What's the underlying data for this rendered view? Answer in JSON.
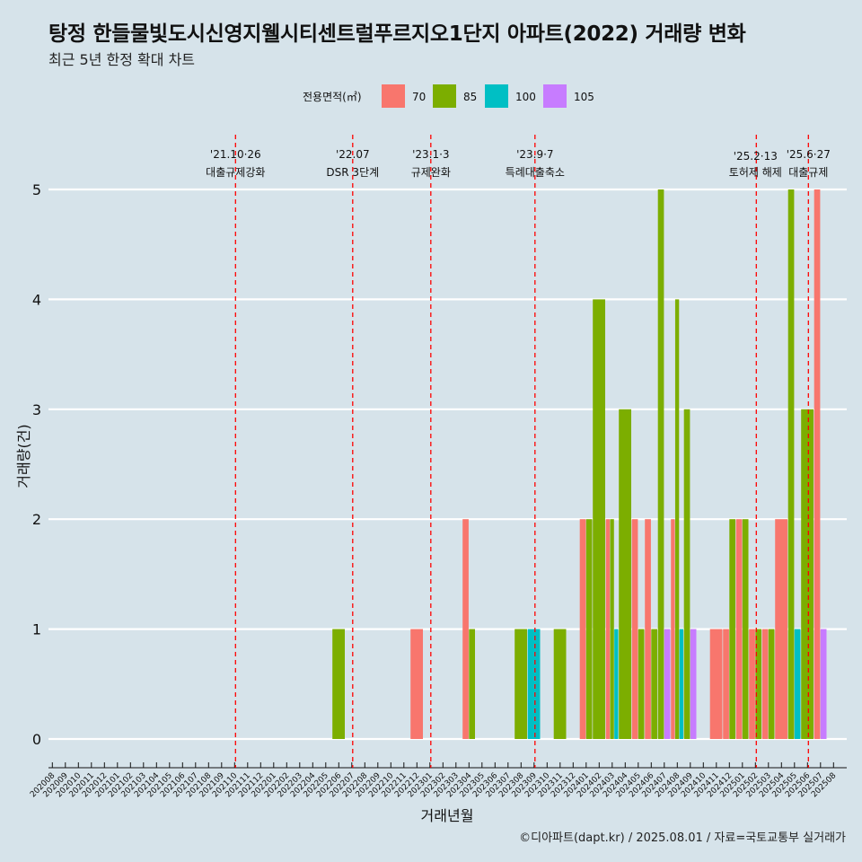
{
  "title": "탕정 한들물빛도시신영지웰시티센트럴푸르지오1단지 아파트(2022) 거래량 변화",
  "subtitle": "최근 5년 한정 확대 차트",
  "caption": "©디아파트(dapt.kr) / 2025.08.01 / 자료=국토교통부 실거래가",
  "chart_data": {
    "type": "bar",
    "xlabel": "거래년월",
    "ylabel": "거래량(건)",
    "ylim": [
      0,
      5
    ],
    "y_ticks": [
      0,
      1,
      2,
      3,
      4,
      5
    ],
    "grid": true,
    "legend_position": "top",
    "legend_title": "전용면적(㎡)",
    "categories": [
      "202008",
      "202009",
      "202010",
      "202011",
      "202012",
      "202101",
      "202102",
      "202103",
      "202104",
      "202105",
      "202106",
      "202107",
      "202108",
      "202109",
      "202110",
      "202111",
      "202112",
      "202201",
      "202202",
      "202203",
      "202204",
      "202205",
      "202206",
      "202207",
      "202208",
      "202209",
      "202210",
      "202211",
      "202212",
      "202301",
      "202302",
      "202303",
      "202304",
      "202305",
      "202306",
      "202307",
      "202308",
      "202309",
      "202310",
      "202311",
      "202312",
      "202401",
      "202402",
      "202403",
      "202404",
      "202405",
      "202406",
      "202407",
      "202408",
      "202409",
      "202410",
      "202411",
      "202412",
      "202501",
      "202502",
      "202503",
      "202504",
      "202505",
      "202506",
      "202507",
      "202508"
    ],
    "series": [
      {
        "name": "70",
        "color": "#F8766D",
        "values": [
          0,
          0,
          0,
          0,
          0,
          0,
          0,
          0,
          0,
          0,
          0,
          0,
          0,
          0,
          0,
          0,
          0,
          0,
          0,
          0,
          0,
          0,
          0,
          0,
          0,
          0,
          0,
          0,
          1,
          0,
          0,
          0,
          2,
          0,
          0,
          0,
          0,
          0,
          0,
          0,
          0,
          2,
          0,
          2,
          0,
          2,
          2,
          0,
          2,
          0,
          0,
          1,
          1,
          2,
          1,
          1,
          2,
          0,
          0,
          5,
          0
        ]
      },
      {
        "name": "85",
        "color": "#7CAE00",
        "values": [
          0,
          0,
          0,
          0,
          0,
          0,
          0,
          0,
          0,
          0,
          0,
          0,
          0,
          0,
          0,
          0,
          0,
          0,
          0,
          0,
          0,
          0,
          1,
          0,
          0,
          0,
          0,
          0,
          0,
          0,
          0,
          0,
          1,
          0,
          0,
          0,
          1,
          0,
          0,
          1,
          0,
          2,
          4,
          2,
          3,
          1,
          1,
          5,
          4,
          3,
          0,
          0,
          2,
          2,
          1,
          1,
          0,
          5,
          3,
          0,
          0
        ]
      },
      {
        "name": "100",
        "color": "#00BFC4",
        "values": [
          0,
          0,
          0,
          0,
          0,
          0,
          0,
          0,
          0,
          0,
          0,
          0,
          0,
          0,
          0,
          0,
          0,
          0,
          0,
          0,
          0,
          0,
          0,
          0,
          0,
          0,
          0,
          0,
          0,
          0,
          0,
          0,
          0,
          0,
          0,
          0,
          0,
          1,
          0,
          0,
          0,
          0,
          0,
          1,
          0,
          0,
          0,
          0,
          1,
          0,
          0,
          0,
          0,
          0,
          0,
          0,
          0,
          1,
          0,
          0,
          0
        ]
      },
      {
        "name": "105",
        "color": "#C77CFF",
        "values": [
          0,
          0,
          0,
          0,
          0,
          0,
          0,
          0,
          0,
          0,
          0,
          0,
          0,
          0,
          0,
          0,
          0,
          0,
          0,
          0,
          0,
          0,
          0,
          0,
          0,
          0,
          0,
          0,
          0,
          0,
          0,
          0,
          0,
          0,
          0,
          0,
          0,
          0,
          0,
          0,
          0,
          0,
          0,
          0,
          0,
          0,
          0,
          1,
          0,
          1,
          0,
          0,
          0,
          0,
          0,
          0,
          0,
          0,
          0,
          1,
          0
        ]
      }
    ],
    "events": [
      {
        "month": "202110",
        "date": "'21.10·26",
        "label": "대출규제강화"
      },
      {
        "month": "202207",
        "date": "'22.07",
        "label": "DSR 3단계"
      },
      {
        "month": "202301",
        "date": "'23.1·3",
        "label": "규제완화"
      },
      {
        "month": "202309",
        "date": "'23.9·7",
        "label": "특례대출축소"
      },
      {
        "month": "202502",
        "date": "'25.2·13",
        "label": "토허제 해제"
      },
      {
        "month": "202506",
        "date": "'25.6·27",
        "label": "대출규제"
      }
    ],
    "event_line_color": "#ff0000"
  }
}
